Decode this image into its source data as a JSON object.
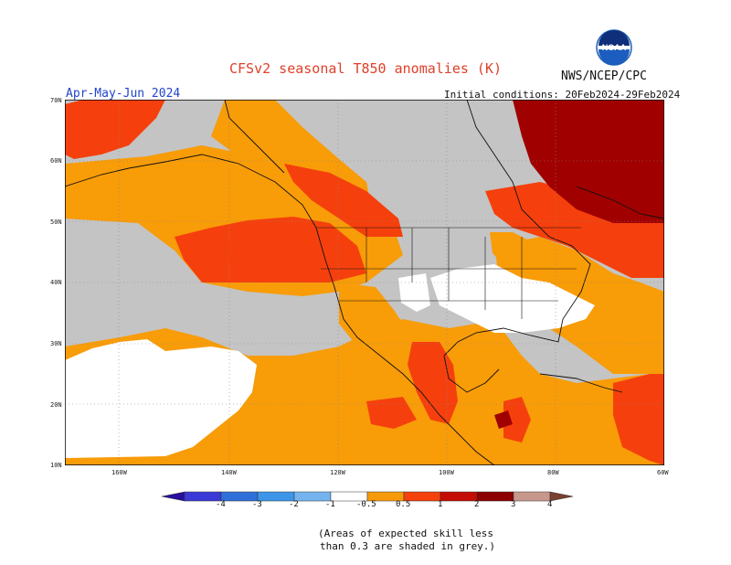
{
  "title": "CFSv2 seasonal T850 anomalies (K)",
  "organization": "NWS/NCEP/CPC",
  "logo_text": "NOAA",
  "forecast_period": "Apr-May-Jun 2024",
  "initial_conditions": "Initial conditions: 20Feb2024-29Feb2024",
  "lat_labels": [
    "70N",
    "60N",
    "50N",
    "40N",
    "30N",
    "20N",
    "10N"
  ],
  "lon_labels": [
    "160W",
    "140W",
    "120W",
    "100W",
    "80W",
    "60W"
  ],
  "colorbar": {
    "labels": [
      "-4",
      "-3",
      "-2",
      "-1",
      "-0.5",
      "0.5",
      "1",
      "2",
      "3",
      "4"
    ],
    "colors": [
      "#2a0f9c",
      "#3a3ad6",
      "#2f6fd8",
      "#3d95e8",
      "#75b4ee",
      "#ffffff",
      "#f79a0a",
      "#f5410c",
      "#c40d05",
      "#8c0000",
      "#c8988c",
      "#7a4030"
    ]
  },
  "note": [
    "(Areas of expected skill less",
    "than 0.3 are shaded in grey.)"
  ],
  "colors": {
    "grey": "#c4c4c4",
    "white": "#ffffff",
    "orange": "#f89c08",
    "red_orange": "#f5400d",
    "dark_red": "#a00000",
    "title": "#e0402a",
    "period": "#2244cc"
  }
}
